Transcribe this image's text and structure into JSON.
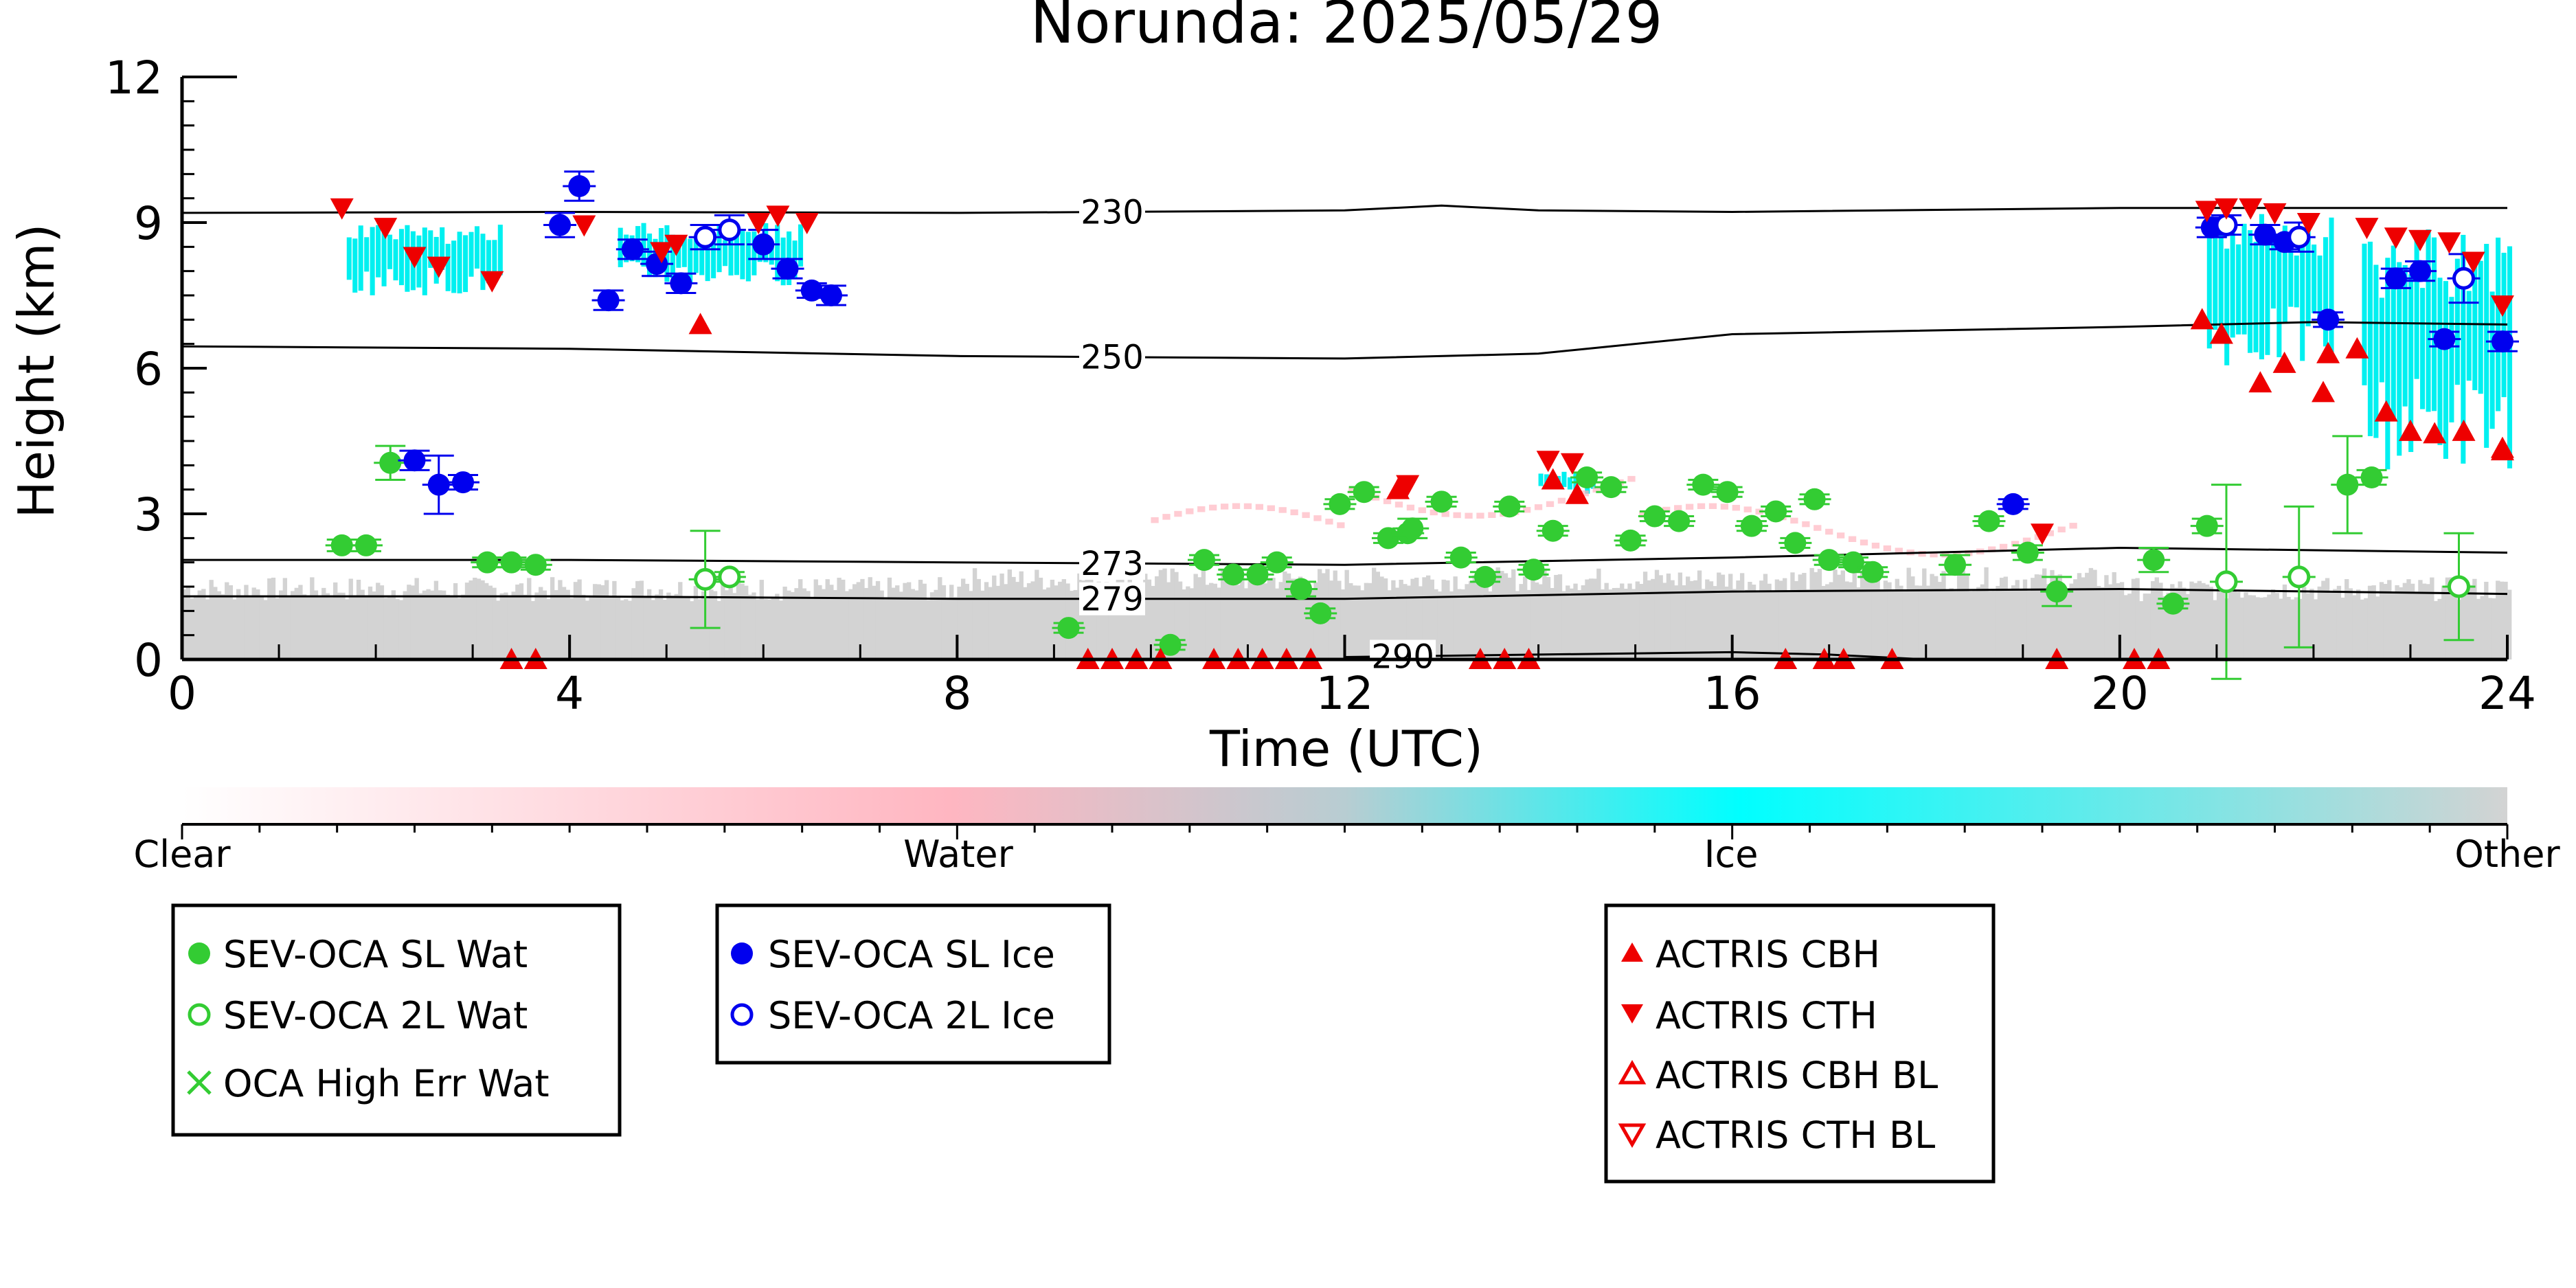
{
  "chart_data": {
    "type": "scatter",
    "title": "Norunda: 2025/05/29",
    "xlabel": "Time (UTC)",
    "ylabel": "Height (km)",
    "xlim": [
      0,
      24
    ],
    "ylim": [
      0,
      12
    ],
    "xticks": [
      0,
      4,
      8,
      12,
      16,
      20,
      24
    ],
    "xtick_labels": [
      "0",
      "4",
      "8",
      "12",
      "16",
      "20",
      "24"
    ],
    "yticks": [
      0,
      3,
      6,
      9,
      12
    ],
    "ytick_labels": [
      "0",
      "3",
      "6",
      "9",
      "12"
    ],
    "grid": false,
    "colorbar": {
      "labels": [
        "Clear",
        "Water",
        "Ice",
        "Other"
      ],
      "colors": [
        "#ffffff",
        "#ffb6c1",
        "#00ffff",
        "#d3d3d3"
      ]
    },
    "isotherms": [
      {
        "label": "230",
        "x": [
          0,
          4,
          8,
          12,
          13,
          14,
          16,
          20,
          24
        ],
        "y": [
          9.2,
          9.22,
          9.2,
          9.25,
          9.35,
          9.25,
          9.22,
          9.3,
          9.3
        ]
      },
      {
        "label": "250",
        "x": [
          0,
          4,
          8,
          12,
          14,
          16,
          20,
          22,
          24
        ],
        "y": [
          6.45,
          6.4,
          6.25,
          6.2,
          6.3,
          6.7,
          6.85,
          6.95,
          6.9
        ]
      },
      {
        "label": "273",
        "x": [
          0,
          4,
          8,
          12,
          16,
          20,
          24
        ],
        "y": [
          2.05,
          2.05,
          2.0,
          1.95,
          2.1,
          2.3,
          2.2
        ]
      },
      {
        "label": "279",
        "x": [
          0,
          4,
          8,
          12,
          16,
          20,
          24
        ],
        "y": [
          1.3,
          1.3,
          1.25,
          1.25,
          1.4,
          1.45,
          1.35
        ]
      },
      {
        "label": "290",
        "x": [
          12,
          14,
          16,
          17,
          18
        ],
        "y": [
          0.05,
          0.1,
          0.15,
          0.1,
          0.0
        ]
      }
    ],
    "series": [
      {
        "name": "SEV-OCA SL Wat",
        "marker": "circle-filled",
        "color": "#33cc33",
        "x": [
          1.65,
          1.9,
          2.15,
          3.15,
          3.4,
          3.65,
          9.15,
          10.2,
          10.55,
          10.85,
          11.1,
          11.3,
          11.55,
          11.75,
          11.95,
          12.2,
          12.45,
          12.65,
          12.7,
          13.0,
          13.2,
          13.45,
          13.7,
          13.95,
          14.15,
          14.5,
          14.75,
          14.95,
          15.2,
          15.45,
          15.7,
          15.95,
          16.2,
          16.45,
          16.65,
          16.85,
          17.0,
          17.25,
          17.45,
          18.3,
          18.65,
          19.05,
          19.35,
          20.35,
          20.55,
          20.9,
          22.35,
          22.6
        ],
        "y": [
          2.35,
          2.35,
          4.05,
          2.0,
          2.0,
          1.95,
          0.65,
          0.3,
          2.05,
          1.75,
          1.75,
          2.0,
          1.45,
          0.95,
          3.2,
          3.45,
          2.5,
          2.6,
          2.7,
          3.25,
          2.1,
          1.7,
          3.15,
          1.85,
          2.65,
          3.75,
          3.55,
          2.45,
          2.95,
          2.85,
          3.6,
          3.45,
          2.75,
          3.05,
          2.4,
          3.3,
          2.05,
          2.0,
          1.8,
          1.95,
          2.85,
          2.2,
          1.4,
          2.05,
          1.15,
          2.75,
          3.6,
          3.75
        ],
        "yerr": [
          0.12,
          0.12,
          0.35,
          0.1,
          0.1,
          0.1,
          0.1,
          0.1,
          0.1,
          0.1,
          0.1,
          0.1,
          0.15,
          0.1,
          0.1,
          0.1,
          0.1,
          0.1,
          0.2,
          0.1,
          0.1,
          0.1,
          0.1,
          0.1,
          0.1,
          0.1,
          0.1,
          0.1,
          0.1,
          0.1,
          0.1,
          0.1,
          0.1,
          0.1,
          0.1,
          0.1,
          0.1,
          0.1,
          0.1,
          0.2,
          0.1,
          0.15,
          0.3,
          0.25,
          0.1,
          0.15,
          1.0,
          0.15
        ]
      },
      {
        "name": "SEV-OCA 2L Wat",
        "marker": "circle-open",
        "color": "#33cc33",
        "x": [
          5.4,
          5.65,
          21.1,
          21.85,
          23.5
        ],
        "y": [
          1.65,
          1.7,
          1.6,
          1.7,
          1.5
        ],
        "yerr": [
          1.0,
          0.1,
          2.0,
          1.45,
          1.1
        ]
      },
      {
        "name": "OCA High Err Wat",
        "marker": "x",
        "color": "#33cc33",
        "x": [],
        "y": []
      },
      {
        "name": "SEV-OCA SL Ice",
        "marker": "circle-filled",
        "color": "#0000ee",
        "x": [
          2.4,
          2.65,
          2.9,
          3.9,
          4.1,
          4.4,
          4.65,
          4.9,
          5.15,
          6.0,
          6.25,
          6.5,
          6.7,
          18.9,
          20.95,
          21.5,
          21.7,
          22.15,
          22.85,
          23.1,
          23.35,
          23.95
        ],
        "y": [
          4.1,
          3.6,
          3.65,
          8.95,
          9.75,
          7.4,
          8.45,
          8.15,
          7.75,
          8.55,
          8.05,
          7.6,
          7.5,
          3.2,
          8.9,
          8.75,
          8.6,
          7.0,
          7.85,
          8.0,
          6.6,
          6.55
        ],
        "yerr": [
          0.2,
          0.6,
          0.15,
          0.25,
          0.3,
          0.2,
          0.2,
          0.25,
          0.2,
          0.3,
          0.2,
          0.15,
          0.2,
          0.1,
          0.2,
          0.2,
          0.15,
          0.15,
          0.2,
          0.2,
          0.15,
          0.2
        ]
      },
      {
        "name": "SEV-OCA 2L Ice",
        "marker": "circle-open",
        "color": "#0000ee",
        "x": [
          5.4,
          5.65,
          21.1,
          21.85,
          23.55
        ],
        "y": [
          8.7,
          8.85,
          8.95,
          8.7,
          7.85
        ],
        "yerr": [
          0.25,
          0.3,
          0.2,
          0.3,
          0.5
        ]
      },
      {
        "name": "ACTRIS CBH",
        "marker": "triangle-up-filled",
        "color": "#ee0000",
        "x": [
          5.35,
          12.55,
          14.15,
          14.4,
          20.85,
          21.05,
          21.45,
          21.7,
          22.1,
          22.15,
          22.45,
          22.75,
          23.0,
          23.25,
          23.55,
          23.95,
          23.95,
          3.4,
          3.65,
          9.35,
          9.6,
          9.85,
          10.1,
          10.65,
          10.9,
          11.15,
          11.4,
          11.65,
          13.4,
          13.65,
          13.9,
          16.55,
          16.95,
          17.15,
          17.65,
          19.35,
          20.15,
          20.4
        ],
        "y": [
          6.9,
          3.5,
          3.7,
          3.4,
          7.0,
          6.7,
          5.7,
          6.1,
          5.5,
          6.3,
          6.4,
          5.1,
          4.7,
          4.65,
          4.7,
          4.3,
          4.35,
          0.0,
          0.0,
          0.0,
          0.0,
          0.0,
          0.0,
          0.0,
          0.0,
          0.0,
          0.0,
          0.0,
          0.0,
          0.0,
          0.0,
          0.0,
          0.0,
          0.0,
          0.0,
          0.0,
          0.0,
          0.0
        ]
      },
      {
        "name": "ACTRIS CTH",
        "marker": "triangle-down-filled",
        "color": "#ee0000",
        "x": [
          1.65,
          2.1,
          2.4,
          2.65,
          3.2,
          4.15,
          4.95,
          5.1,
          5.95,
          6.15,
          6.45,
          14.1,
          14.35,
          12.65,
          19.2,
          20.9,
          21.1,
          21.35,
          21.6,
          21.95,
          22.55,
          22.85,
          23.1,
          23.4,
          23.65,
          23.95
        ],
        "y": [
          9.3,
          8.9,
          8.3,
          8.1,
          7.8,
          8.95,
          8.4,
          8.55,
          9.0,
          9.15,
          9.0,
          4.1,
          4.05,
          3.6,
          2.6,
          9.25,
          9.3,
          9.3,
          9.2,
          9.0,
          8.9,
          8.7,
          8.65,
          8.6,
          8.2,
          7.3
        ]
      },
      {
        "name": "ACTRIS CBH BL",
        "marker": "triangle-up-open",
        "color": "#ee0000",
        "x": [],
        "y": []
      },
      {
        "name": "ACTRIS CTH BL",
        "marker": "triangle-down-open",
        "color": "#ee0000",
        "x": [],
        "y": []
      }
    ],
    "legend": [
      {
        "group": 1,
        "entries": [
          "SEV-OCA SL Wat",
          "SEV-OCA 2L Wat",
          "OCA High Err Wat"
        ]
      },
      {
        "group": 2,
        "entries": [
          "SEV-OCA SL Ice",
          "SEV-OCA 2L Ice"
        ]
      },
      {
        "group": 3,
        "entries": [
          "ACTRIS CBH",
          "ACTRIS CTH",
          "ACTRIS CBH BL",
          "ACTRIS CTH BL"
        ]
      }
    ]
  }
}
